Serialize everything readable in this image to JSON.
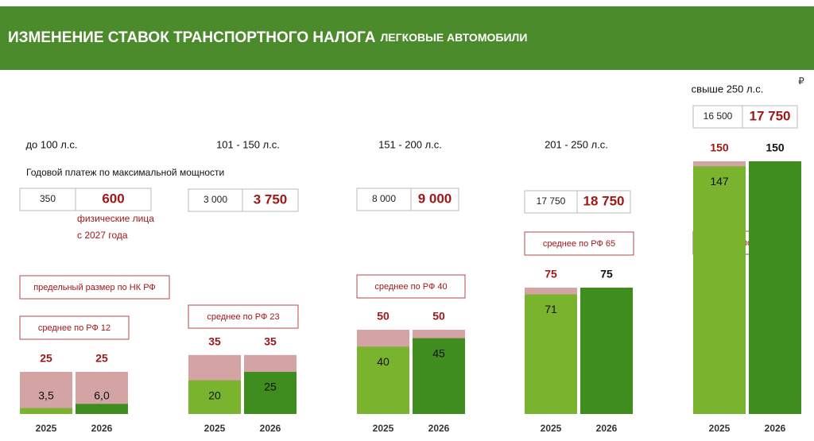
{
  "chart_data": {
    "type": "bar",
    "title": "ИЗМЕНЕНИЕ СТАВОК ТРАНСПОРТНОГО НАЛОГА",
    "subtitle": "ЛЕГКОВЫЕ АВТОМОБИЛИ",
    "unit": "₽",
    "payment_caption": "Годовой платеж по максимальной мощности",
    "note": [
      "физические лица",
      "с 2027 года"
    ],
    "limit_caption": "предельный размер по НК РФ",
    "categories": [
      "2025",
      "2026"
    ],
    "colors": {
      "max": "#d4a3a3",
      "average_2025": "#7ab42f",
      "average_2026": "#3f8c1f"
    },
    "groups": [
      {
        "name": "до 100 л.с.",
        "average_caption": "среднее по РФ 12",
        "payments": [
          350,
          600
        ],
        "max": [
          25,
          25
        ],
        "average": [
          3.5,
          6.0
        ],
        "average_labels": [
          "3,5",
          "6,0"
        ]
      },
      {
        "name": "101 - 150 л.с.",
        "average_caption": "среднее по РФ 23",
        "payments": [
          3000,
          3750
        ],
        "payment_labels": [
          "3 000",
          "3 750"
        ],
        "max": [
          35,
          35
        ],
        "average": [
          20,
          25
        ]
      },
      {
        "name": "151 - 200 л.с.",
        "average_caption": "среднее по РФ 40",
        "payments": [
          8000,
          9000
        ],
        "payment_labels": [
          "8 000",
          "9 000"
        ],
        "max": [
          50,
          50
        ],
        "average": [
          40,
          45
        ]
      },
      {
        "name": "201 - 250 л.с.",
        "average_caption": "среднее по РФ 65",
        "payments": [
          17750,
          18750
        ],
        "payment_labels": [
          "17 750",
          "18 750"
        ],
        "max": [
          75,
          75
        ],
        "average": [
          71,
          null
        ]
      },
      {
        "name": "свыше 250 л.с.",
        "average_caption": "среднее по РФ 129",
        "payments": [
          16500,
          17750
        ],
        "payment_labels": [
          "16 500",
          "17 750"
        ],
        "max": [
          150,
          150
        ],
        "average": [
          147,
          null
        ]
      }
    ]
  }
}
